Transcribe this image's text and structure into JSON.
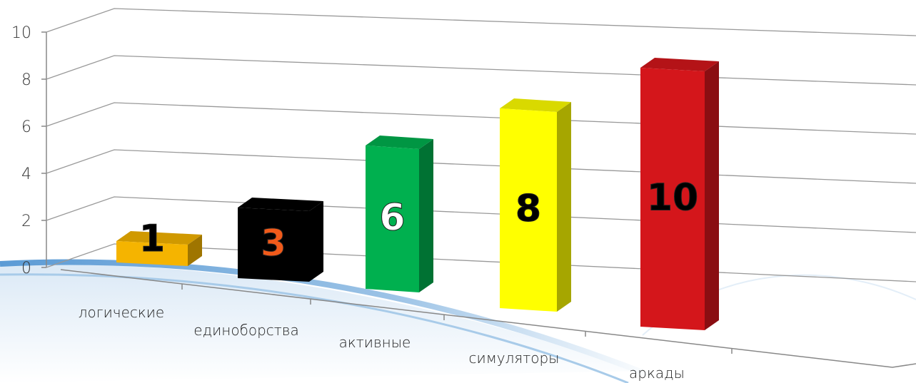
{
  "chart_data": {
    "type": "bar3d",
    "categories": [
      "логические",
      "единоборства",
      "активные",
      "симуляторы",
      "аркады"
    ],
    "values": [
      1,
      3,
      6,
      8,
      10
    ],
    "colors": [
      "#f5b400",
      "#000000",
      "#00b04f",
      "#ffff00",
      "#d4161b"
    ],
    "label_colors": [
      "#000000",
      "#f05a1a",
      "#ffffff",
      "#000000",
      "#000000"
    ],
    "ylim": [
      0,
      10
    ],
    "yticks": [
      0,
      2,
      4,
      6,
      8,
      10
    ],
    "grid": true
  }
}
